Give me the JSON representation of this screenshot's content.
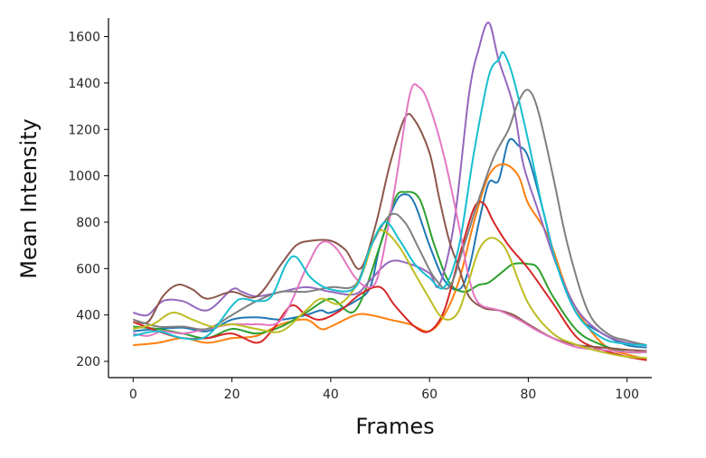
{
  "chart_data": {
    "type": "line",
    "xlabel": "Frames",
    "ylabel": "Mean Intensity",
    "xlim": [
      -5,
      105
    ],
    "ylim": [
      130,
      1680
    ],
    "xticks": [
      0,
      20,
      40,
      60,
      80,
      100
    ],
    "yticks": [
      200,
      400,
      600,
      800,
      1000,
      1200,
      1400,
      1600
    ],
    "grid": false,
    "legend": "none",
    "series": [
      {
        "color": "#1f77b4",
        "points": [
          [
            0,
            330
          ],
          [
            5,
            340
          ],
          [
            10,
            345
          ],
          [
            15,
            330
          ],
          [
            20,
            380
          ],
          [
            25,
            390
          ],
          [
            30,
            380
          ],
          [
            35,
            400
          ],
          [
            38,
            420
          ],
          [
            40,
            410
          ],
          [
            45,
            460
          ],
          [
            48,
            520
          ],
          [
            50,
            700
          ],
          [
            53,
            880
          ],
          [
            55,
            920
          ],
          [
            57,
            880
          ],
          [
            60,
            700
          ],
          [
            63,
            550
          ],
          [
            66,
            510
          ],
          [
            68,
            600
          ],
          [
            70,
            800
          ],
          [
            72,
            970
          ],
          [
            74,
            980
          ],
          [
            76,
            1150
          ],
          [
            78,
            1130
          ],
          [
            80,
            1080
          ],
          [
            83,
            850
          ],
          [
            86,
            600
          ],
          [
            90,
            400
          ],
          [
            95,
            320
          ],
          [
            100,
            270
          ],
          [
            104,
            260
          ]
        ]
      },
      {
        "color": "#ff7f0e",
        "points": [
          [
            0,
            270
          ],
          [
            5,
            280
          ],
          [
            10,
            300
          ],
          [
            15,
            280
          ],
          [
            20,
            300
          ],
          [
            25,
            310
          ],
          [
            30,
            360
          ],
          [
            35,
            380
          ],
          [
            38,
            340
          ],
          [
            40,
            350
          ],
          [
            45,
            400
          ],
          [
            48,
            400
          ],
          [
            52,
            380
          ],
          [
            56,
            360
          ],
          [
            60,
            330
          ],
          [
            63,
            400
          ],
          [
            66,
            550
          ],
          [
            69,
            800
          ],
          [
            72,
            1000
          ],
          [
            75,
            1050
          ],
          [
            78,
            1000
          ],
          [
            80,
            880
          ],
          [
            84,
            740
          ],
          [
            88,
            500
          ],
          [
            92,
            350
          ],
          [
            96,
            260
          ],
          [
            100,
            230
          ],
          [
            104,
            210
          ]
        ]
      },
      {
        "color": "#2ca02c",
        "points": [
          [
            0,
            350
          ],
          [
            5,
            340
          ],
          [
            10,
            320
          ],
          [
            15,
            300
          ],
          [
            20,
            340
          ],
          [
            25,
            320
          ],
          [
            30,
            350
          ],
          [
            35,
            410
          ],
          [
            40,
            470
          ],
          [
            45,
            420
          ],
          [
            50,
            700
          ],
          [
            53,
            900
          ],
          [
            55,
            930
          ],
          [
            58,
            900
          ],
          [
            61,
            700
          ],
          [
            64,
            540
          ],
          [
            67,
            500
          ],
          [
            70,
            530
          ],
          [
            72,
            540
          ],
          [
            75,
            590
          ],
          [
            77,
            620
          ],
          [
            80,
            620
          ],
          [
            82,
            600
          ],
          [
            85,
            480
          ],
          [
            90,
            330
          ],
          [
            95,
            270
          ],
          [
            100,
            240
          ],
          [
            104,
            240
          ]
        ]
      },
      {
        "color": "#d62728",
        "points": [
          [
            0,
            370
          ],
          [
            5,
            330
          ],
          [
            10,
            300
          ],
          [
            15,
            300
          ],
          [
            20,
            320
          ],
          [
            25,
            280
          ],
          [
            28,
            330
          ],
          [
            32,
            440
          ],
          [
            35,
            400
          ],
          [
            38,
            380
          ],
          [
            42,
            420
          ],
          [
            46,
            490
          ],
          [
            50,
            520
          ],
          [
            53,
            440
          ],
          [
            57,
            350
          ],
          [
            60,
            330
          ],
          [
            63,
            420
          ],
          [
            66,
            650
          ],
          [
            69,
            860
          ],
          [
            71,
            880
          ],
          [
            73,
            800
          ],
          [
            76,
            700
          ],
          [
            80,
            600
          ],
          [
            85,
            450
          ],
          [
            90,
            300
          ],
          [
            95,
            250
          ],
          [
            100,
            220
          ],
          [
            104,
            205
          ]
        ]
      },
      {
        "color": "#9467bd",
        "points": [
          [
            0,
            410
          ],
          [
            3,
            400
          ],
          [
            6,
            460
          ],
          [
            10,
            460
          ],
          [
            15,
            420
          ],
          [
            20,
            510
          ],
          [
            22,
            500
          ],
          [
            25,
            480
          ],
          [
            30,
            500
          ],
          [
            35,
            520
          ],
          [
            40,
            500
          ],
          [
            45,
            490
          ],
          [
            48,
            550
          ],
          [
            52,
            630
          ],
          [
            56,
            620
          ],
          [
            60,
            580
          ],
          [
            62,
            530
          ],
          [
            65,
            800
          ],
          [
            68,
            1350
          ],
          [
            70,
            1550
          ],
          [
            72,
            1660
          ],
          [
            74,
            1500
          ],
          [
            77,
            1300
          ],
          [
            79,
            1050
          ],
          [
            82,
            850
          ],
          [
            86,
            600
          ],
          [
            90,
            420
          ],
          [
            95,
            320
          ],
          [
            100,
            280
          ],
          [
            104,
            270
          ]
        ]
      },
      {
        "color": "#8c564b",
        "points": [
          [
            0,
            380
          ],
          [
            3,
            370
          ],
          [
            6,
            480
          ],
          [
            9,
            530
          ],
          [
            12,
            510
          ],
          [
            15,
            470
          ],
          [
            20,
            500
          ],
          [
            25,
            480
          ],
          [
            30,
            620
          ],
          [
            33,
            700
          ],
          [
            36,
            720
          ],
          [
            40,
            720
          ],
          [
            43,
            680
          ],
          [
            46,
            600
          ],
          [
            49,
            780
          ],
          [
            52,
            1050
          ],
          [
            55,
            1250
          ],
          [
            57,
            1240
          ],
          [
            60,
            1100
          ],
          [
            62,
            900
          ],
          [
            64,
            720
          ],
          [
            66,
            600
          ],
          [
            68,
            480
          ],
          [
            71,
            430
          ],
          [
            74,
            420
          ],
          [
            77,
            400
          ],
          [
            80,
            360
          ],
          [
            85,
            300
          ],
          [
            90,
            270
          ],
          [
            95,
            260
          ],
          [
            100,
            250
          ],
          [
            104,
            245
          ]
        ]
      },
      {
        "color": "#e377c2",
        "points": [
          [
            0,
            320
          ],
          [
            3,
            310
          ],
          [
            6,
            330
          ],
          [
            10,
            320
          ],
          [
            15,
            340
          ],
          [
            20,
            360
          ],
          [
            25,
            360
          ],
          [
            30,
            380
          ],
          [
            35,
            600
          ],
          [
            38,
            710
          ],
          [
            41,
            690
          ],
          [
            45,
            560
          ],
          [
            48,
            520
          ],
          [
            50,
            600
          ],
          [
            53,
            950
          ],
          [
            56,
            1350
          ],
          [
            58,
            1380
          ],
          [
            60,
            1300
          ],
          [
            63,
            1080
          ],
          [
            66,
            780
          ],
          [
            68,
            560
          ],
          [
            70,
            450
          ],
          [
            74,
            420
          ],
          [
            78,
            380
          ],
          [
            82,
            330
          ],
          [
            86,
            290
          ],
          [
            90,
            260
          ],
          [
            95,
            250
          ],
          [
            100,
            240
          ],
          [
            104,
            240
          ]
        ]
      },
      {
        "color": "#7f7f7f",
        "points": [
          [
            0,
            380
          ],
          [
            5,
            350
          ],
          [
            10,
            350
          ],
          [
            15,
            340
          ],
          [
            20,
            400
          ],
          [
            25,
            460
          ],
          [
            30,
            500
          ],
          [
            35,
            500
          ],
          [
            40,
            520
          ],
          [
            45,
            530
          ],
          [
            48,
            690
          ],
          [
            52,
            830
          ],
          [
            55,
            800
          ],
          [
            58,
            680
          ],
          [
            61,
            560
          ],
          [
            64,
            520
          ],
          [
            67,
            700
          ],
          [
            70,
            900
          ],
          [
            73,
            1080
          ],
          [
            76,
            1200
          ],
          [
            78,
            1320
          ],
          [
            80,
            1370
          ],
          [
            82,
            1280
          ],
          [
            85,
            1000
          ],
          [
            88,
            700
          ],
          [
            92,
            420
          ],
          [
            96,
            320
          ],
          [
            100,
            290
          ],
          [
            104,
            270
          ]
        ]
      },
      {
        "color": "#bcbd22",
        "points": [
          [
            0,
            340
          ],
          [
            4,
            360
          ],
          [
            8,
            410
          ],
          [
            12,
            380
          ],
          [
            16,
            350
          ],
          [
            20,
            360
          ],
          [
            25,
            340
          ],
          [
            30,
            330
          ],
          [
            35,
            420
          ],
          [
            38,
            470
          ],
          [
            42,
            450
          ],
          [
            46,
            560
          ],
          [
            49,
            740
          ],
          [
            51,
            760
          ],
          [
            54,
            690
          ],
          [
            57,
            580
          ],
          [
            60,
            470
          ],
          [
            62,
            400
          ],
          [
            64,
            380
          ],
          [
            66,
            420
          ],
          [
            68,
            550
          ],
          [
            70,
            680
          ],
          [
            72,
            730
          ],
          [
            74,
            720
          ],
          [
            76,
            660
          ],
          [
            80,
            450
          ],
          [
            85,
            320
          ],
          [
            90,
            270
          ],
          [
            95,
            240
          ],
          [
            100,
            220
          ],
          [
            104,
            215
          ]
        ]
      },
      {
        "color": "#17becf",
        "points": [
          [
            0,
            310
          ],
          [
            5,
            330
          ],
          [
            10,
            300
          ],
          [
            15,
            310
          ],
          [
            20,
            440
          ],
          [
            22,
            470
          ],
          [
            25,
            460
          ],
          [
            28,
            480
          ],
          [
            31,
            620
          ],
          [
            33,
            650
          ],
          [
            36,
            560
          ],
          [
            40,
            510
          ],
          [
            45,
            520
          ],
          [
            48,
            690
          ],
          [
            51,
            800
          ],
          [
            54,
            720
          ],
          [
            57,
            620
          ],
          [
            60,
            560
          ],
          [
            63,
            520
          ],
          [
            66,
            700
          ],
          [
            69,
            1100
          ],
          [
            72,
            1430
          ],
          [
            74,
            1500
          ],
          [
            75,
            1530
          ],
          [
            77,
            1420
          ],
          [
            80,
            1150
          ],
          [
            83,
            850
          ],
          [
            86,
            600
          ],
          [
            90,
            400
          ],
          [
            95,
            300
          ],
          [
            100,
            275
          ],
          [
            104,
            270
          ]
        ]
      }
    ]
  }
}
